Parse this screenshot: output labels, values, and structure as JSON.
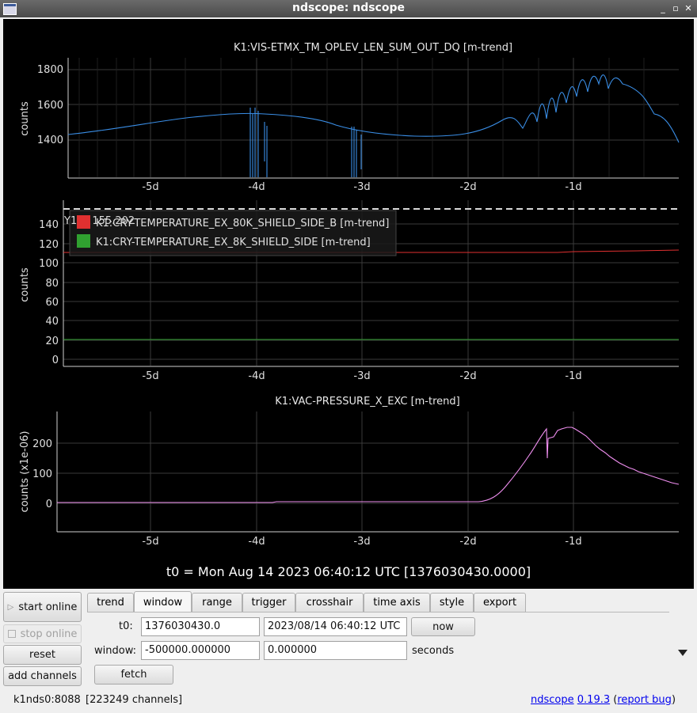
{
  "window": {
    "title": "ndscope: ndscope"
  },
  "plots": [
    {
      "title": "K1:VIS-ETMX_TM_OPLEV_LEN_SUM_OUT_DQ [m-trend]",
      "ylabel": "counts",
      "yticks": [
        "1800",
        "1600",
        "1400"
      ],
      "xticks": [
        "-5d",
        "-4d",
        "-3d",
        "-2d",
        "-1d"
      ]
    },
    {
      "title": "",
      "ylabel": "counts",
      "yticks": [
        "140",
        "120",
        "100",
        "80",
        "60",
        "40",
        "20",
        "0"
      ],
      "xticks": [
        "-5d",
        "-4d",
        "-3d",
        "-2d",
        "-1d"
      ],
      "cursor_label": "Y1 = 155.202",
      "legend": [
        {
          "name": "K1:CRY-TEMPERATURE_EX_80K_SHIELD_SIDE_B [m-trend]",
          "color": "#e03030"
        },
        {
          "name": "K1:CRY-TEMPERATURE_EX_8K_SHIELD_SIDE [m-trend]",
          "color": "#30a030"
        }
      ]
    },
    {
      "title": "K1:VAC-PRESSURE_X_EXC [m-trend]",
      "ylabel": "counts (x1e-06)",
      "yticks": [
        "200",
        "100",
        "0"
      ],
      "xticks": [
        "-5d",
        "-4d",
        "-3d",
        "-2d",
        "-1d"
      ]
    }
  ],
  "t0_label": "t0 = Mon Aug 14 2023 06:40:12 UTC [1376030430.0000]",
  "buttons": {
    "start_online": "start online",
    "stop_online": "stop online",
    "reset": "reset",
    "add_channels": "add channels",
    "now": "now",
    "fetch": "fetch"
  },
  "tabs": [
    "trend",
    "window",
    "range",
    "trigger",
    "crosshair",
    "time axis",
    "style",
    "export"
  ],
  "form": {
    "t0_label": "t0:",
    "t0_gps": "1376030430.0",
    "t0_utc": "2023/08/14 06:40:12 UTC",
    "window_label": "window:",
    "window_start": "-500000.000000",
    "window_end": "0.000000",
    "units": "seconds"
  },
  "status": {
    "server": "k1nds0:8088",
    "channels": "[223249 channels]",
    "app": "ndscope",
    "version": "0.19.3",
    "report": "report bug"
  },
  "colors": {
    "trace1": "#3a8ee6",
    "trace_red": "#e03030",
    "trace_green": "#30a030",
    "trace_pink": "#f08ff0"
  }
}
